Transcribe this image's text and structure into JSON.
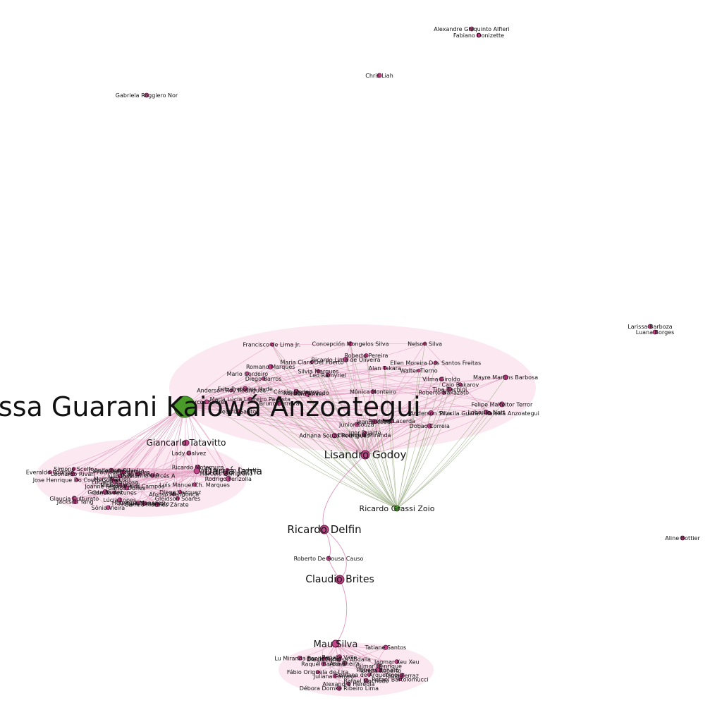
{
  "colors": {
    "node_pink": "#c0468a",
    "node_green": "#4a9a2a",
    "edge_pink": "#d67aa8",
    "edge_green": "#8aa070",
    "cluster_fill": "#f7d6e6"
  },
  "hubs": {
    "main": "Larissa Guarani Kaiowá Anzoategui",
    "lisandro": "Lisandro Godoy",
    "ricardo_grassi": "Ricardo Grassi Zoio",
    "ricardo_delfin": "Ricardo Delfin",
    "claudio": "Claudio Brites",
    "mau": "Mau Silva",
    "giancarlo": "Giancarlo Tatavitto",
    "darua": "Daruá Jama",
    "roberto": "Roberto De Sousa Causo"
  },
  "isolated": {
    "alexandre_ghiquinto": "Alexandre Ghiquinto Alfieri",
    "fabiano": "Fabiano Donizette",
    "chris": "Chris Liah",
    "gabriela": "Gabriela Roggiero Nor",
    "larissa_barboza": "Larissa Barboza",
    "luana": "Luana Borges",
    "aline": "Aline Bottier"
  },
  "main_cluster_labels": [
    "Anderson Roy Rodrigues",
    "Junior Souza",
    "Lobo Da Natt",
    "Bruno Ferreira",
    "Leo Ramyriel",
    "Igor Duarte",
    "Mario Cordeiro",
    "Felipe Malfeitor Terror",
    "Anderson Silva",
    "Raphael Lacerda",
    "Maria Clara Del Puerto",
    "Caio Bakarov",
    "Diego Barros",
    "Roberto Pereira",
    "Priscila Guarani-Kaiowá Anzoategui",
    "Ellen Moreira Dos Santos Freitas",
    "Romano Marques",
    "Silvia Marques",
    "Renato Azevedo",
    "Beatriz Santos",
    "Vilma Giroldo",
    "Fritz Pretorius Hyde",
    "Maria Lúcia Loureiro Paulista",
    "Elisangela Miranda",
    "Adriana Souza Rodrigues",
    "Mayre Martins Barbosa",
    "Concepción Mongelos Silva",
    "Roberto Nakazato",
    "Jean Escobar",
    "Ricardo Lima de Oliveira",
    "Tina Bachini",
    "Pedro Junior",
    "Marcos Soares",
    "Cássio Medeiros",
    "Walter Tierno",
    "Dobao Correia",
    "Francisco de Lima Jr.",
    "Alan Takara",
    "Mônica Monteiro",
    "Nelson Silva"
  ],
  "left_cluster_labels": [
    "Simone Scelfo",
    "Glaucia Culturato",
    "Leonardo Rivari",
    "Michel Versuri",
    "Jackson Yang",
    "Ricardo Motomura",
    "Luciene Barbosa",
    "Camila Antunes",
    "Luís Manuel Ch. Marques",
    "Marcelo Zambrano",
    "Julio Reis",
    "Gleidson Soares",
    "Nelson Tamamoto",
    "Camilo Morales Zárate",
    "Marc Braillon",
    "Jose Henrique Do Couto Corrêa",
    "Anderson Oliveira",
    "Lúcia Lopes",
    "Tiago Augusto Carletti",
    "Rodrigo Ferizolla",
    "Lady Galvez",
    "Marília Garcés A",
    "Patricia Biral Vieira",
    "Greta Nunez",
    "Camilo Quintela",
    "Lucas de Paula",
    "Diego Vazquez",
    "Henrique Menezes",
    "Everaldo Rodrigo",
    "Joanne Peron Vieira Campos",
    "Afonso Mendonça",
    "Carlos Dones",
    "Sônia Vieira"
  ],
  "lower_cluster_labels": [
    "Rafael Machado",
    "Lu Miranda Penna",
    "Débora Domke Ribeiro Lima",
    "Tatiane Santos",
    "Ana Ilheira",
    "Gilmar Henrique",
    "Fábio Origuela de Lira",
    "Juliana Campoi",
    "Semana de Arqueologia",
    "Alexandre Heredia",
    "Rafael Bartolomucci",
    "Tereza Roberto",
    "Danilo Assis",
    "Tania Ferraz",
    "Jagmar Xeu Xeu",
    "Diego Barbosa Abdalla",
    "Raquel Barbosa",
    "Rubens Bonato",
    "Renata Valle"
  ]
}
